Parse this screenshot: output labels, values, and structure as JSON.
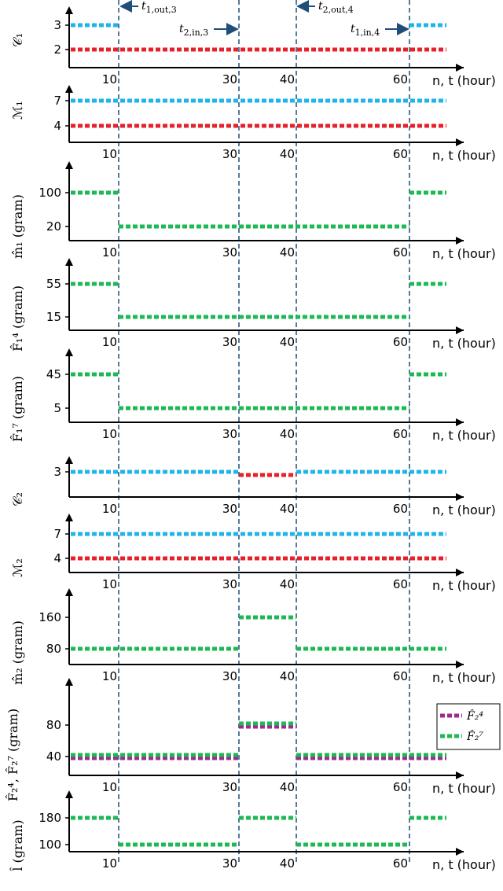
{
  "chart_data": {
    "type": "line",
    "colors": {
      "blue": "#1fb4ea",
      "red": "#e8202a",
      "green": "#1db954",
      "purple": "#a0288f",
      "vline": "#1f4e79"
    },
    "x_axis_label": "n, t (hour)",
    "vlines": [
      10,
      30,
      40,
      60
    ],
    "annotations": [
      {
        "text": "t1,out,3",
        "x": 10,
        "arrow": "left"
      },
      {
        "text": "t2,in,3",
        "x": 30,
        "arrow": "right"
      },
      {
        "text": "t2,out,4",
        "x": 40,
        "arrow": "left"
      },
      {
        "text": "t1,in,4",
        "x": 60,
        "arrow": "right"
      }
    ],
    "panels": [
      {
        "ylabel": "𝒞₁",
        "yticks": [
          "3",
          "2"
        ],
        "xticks": [
          "10",
          "30",
          "40",
          "60"
        ],
        "series": [
          {
            "color": "blue",
            "segments": [
              [
                0,
                10,
                3
              ],
              [
                60,
                66,
                3
              ]
            ]
          },
          {
            "color": "red",
            "segments": [
              [
                0,
                66,
                2
              ]
            ]
          }
        ]
      },
      {
        "ylabel": "ℳ₁",
        "yticks": [
          "7",
          "4"
        ],
        "xticks": [
          "10",
          "30",
          "40",
          "60"
        ],
        "series": [
          {
            "color": "blue",
            "segments": [
              [
                0,
                66,
                7
              ]
            ]
          },
          {
            "color": "red",
            "segments": [
              [
                0,
                66,
                4
              ]
            ]
          }
        ]
      },
      {
        "ylabel": "m̂₁ (gram)",
        "yticks": [
          "100",
          "20"
        ],
        "xticks": [
          "10",
          "30",
          "40",
          "60"
        ],
        "series": [
          {
            "color": "green",
            "segments": [
              [
                0,
                10,
                100
              ],
              [
                10,
                60,
                20
              ],
              [
                60,
                66,
                100
              ]
            ]
          }
        ]
      },
      {
        "ylabel": "F̂₁⁴ (gram)",
        "yticks": [
          "55",
          "15"
        ],
        "xticks": [
          "10",
          "30",
          "40",
          "60"
        ],
        "series": [
          {
            "color": "green",
            "segments": [
              [
                0,
                10,
                55
              ],
              [
                10,
                60,
                15
              ],
              [
                60,
                66,
                55
              ]
            ]
          }
        ]
      },
      {
        "ylabel": "F̂₁⁷ (gram)",
        "yticks": [
          "45",
          "5"
        ],
        "xticks": [
          "10",
          "30",
          "40",
          "60"
        ],
        "series": [
          {
            "color": "green",
            "segments": [
              [
                0,
                10,
                45
              ],
              [
                10,
                60,
                5
              ],
              [
                60,
                66,
                45
              ]
            ]
          }
        ]
      },
      {
        "ylabel": "𝒞₂",
        "yticks": [
          "3"
        ],
        "xticks": [
          "10",
          "30",
          "40",
          "60"
        ],
        "series": [
          {
            "color": "blue",
            "segments": [
              [
                0,
                30,
                3
              ],
              [
                40,
                66,
                3
              ]
            ]
          },
          {
            "color": "red",
            "segments": [
              [
                30,
                40,
                3
              ]
            ]
          }
        ]
      },
      {
        "ylabel": "ℳ₂",
        "yticks": [
          "7",
          "4"
        ],
        "xticks": [
          "10",
          "30",
          "40",
          "60"
        ],
        "series": [
          {
            "color": "blue",
            "segments": [
              [
                0,
                66,
                7
              ]
            ]
          },
          {
            "color": "red",
            "segments": [
              [
                0,
                66,
                4
              ]
            ]
          }
        ]
      },
      {
        "ylabel": "m̂₂ (gram)",
        "yticks": [
          "160",
          "80"
        ],
        "xticks": [
          "10",
          "30",
          "40",
          "60"
        ],
        "series": [
          {
            "color": "green",
            "segments": [
              [
                0,
                30,
                80
              ],
              [
                30,
                40,
                160
              ],
              [
                40,
                66,
                80
              ]
            ]
          }
        ]
      },
      {
        "ylabel": "F̂₂⁴, F̂₂⁷ (gram)",
        "yticks": [
          "80",
          "40"
        ],
        "xticks": [
          "10",
          "30",
          "40",
          "60"
        ],
        "legend": [
          {
            "color": "purple",
            "text": "F̂₂⁴"
          },
          {
            "color": "green",
            "text": "F̂₂⁷"
          }
        ],
        "series": [
          {
            "color": "purple",
            "segments": [
              [
                0,
                30,
                40
              ],
              [
                30,
                40,
                80
              ],
              [
                40,
                66,
                40
              ]
            ]
          },
          {
            "color": "green",
            "segments": [
              [
                0,
                30,
                40
              ],
              [
                30,
                40,
                80
              ],
              [
                40,
                66,
                40
              ]
            ]
          }
        ]
      },
      {
        "ylabel": "l̂ (gram)",
        "yticks": [
          "180",
          "100"
        ],
        "xticks": [
          "10",
          "30",
          "40",
          "60"
        ],
        "series": [
          {
            "color": "green",
            "segments": [
              [
                0,
                10,
                180
              ],
              [
                10,
                30,
                100
              ],
              [
                30,
                40,
                180
              ],
              [
                40,
                60,
                100
              ],
              [
                60,
                66,
                180
              ]
            ]
          }
        ]
      }
    ]
  }
}
